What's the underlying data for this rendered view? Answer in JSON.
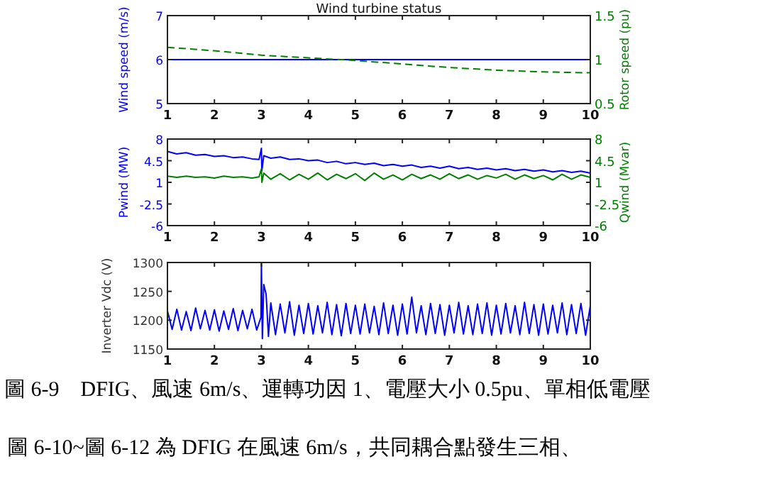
{
  "chart_data": [
    {
      "type": "line",
      "title": "Wind turbine status",
      "ylabel": "Wind speed (m/s)",
      "y2label": "Rotor speed (pu)",
      "xlim": [
        1,
        10
      ],
      "xticks": [
        1,
        2,
        3,
        4,
        5,
        6,
        7,
        8,
        9,
        10
      ],
      "ylim": [
        5,
        7
      ],
      "yticks": [
        5,
        6,
        7
      ],
      "y2lim": [
        0.5,
        1.5
      ],
      "y2ticks": [
        0.5,
        1,
        1.5
      ],
      "series": [
        {
          "color": "#0000ff",
          "x": [
            1,
            10
          ],
          "values": [
            6,
            6
          ]
        },
        {
          "color": "#008000",
          "axis": "y2",
          "line_style": "dashed",
          "x": [
            1,
            2,
            3,
            4,
            5,
            6,
            7,
            8,
            9,
            10
          ],
          "values": [
            1.14,
            1.1,
            1.05,
            1.02,
            0.99,
            0.95,
            0.91,
            0.88,
            0.86,
            0.85
          ]
        }
      ]
    },
    {
      "type": "line",
      "ylabel": "Pwind (MW)",
      "y2label": "Qwind (Mvar)",
      "xlim": [
        1,
        10
      ],
      "xticks": [
        1,
        2,
        3,
        4,
        5,
        6,
        7,
        8,
        9,
        10
      ],
      "ylim": [
        -6,
        8
      ],
      "yticks": [
        -6,
        -2.5,
        1,
        4.5,
        8
      ],
      "y2lim": [
        -6,
        8
      ],
      "y2ticks": [
        -6,
        -2.5,
        1,
        4.5,
        8
      ],
      "series": [
        {
          "color": "#0000ff",
          "x": [
            1,
            1.2,
            1.4,
            1.6,
            1.8,
            2,
            2.2,
            2.4,
            2.6,
            2.8,
            2.95,
            3,
            3.01,
            3.05,
            3.2,
            3.4,
            3.6,
            3.8,
            4,
            4.2,
            4.4,
            4.6,
            4.8,
            5,
            5.2,
            5.4,
            5.6,
            5.8,
            6,
            6.2,
            6.4,
            6.6,
            6.8,
            7,
            7.2,
            7.4,
            7.6,
            7.8,
            8,
            8.2,
            8.4,
            8.6,
            8.8,
            9,
            9.2,
            9.4,
            9.6,
            9.8,
            10
          ],
          "values": [
            6.0,
            5.6,
            5.8,
            5.4,
            5.5,
            5.2,
            5.3,
            5.0,
            5.1,
            4.8,
            4.7,
            6.5,
            2.9,
            5.3,
            4.9,
            5.1,
            4.7,
            4.8,
            4.5,
            4.6,
            4.2,
            4.4,
            4.0,
            4.2,
            3.9,
            4.1,
            3.7,
            3.9,
            3.6,
            3.8,
            3.4,
            3.6,
            3.3,
            3.6,
            3.2,
            3.4,
            3.1,
            3.3,
            3.0,
            3.2,
            2.9,
            3.1,
            2.8,
            3.0,
            2.7,
            2.9,
            2.6,
            2.8,
            2.5
          ]
        },
        {
          "color": "#008000",
          "axis": "y2",
          "x": [
            1,
            1.2,
            1.4,
            1.6,
            1.8,
            2,
            2.2,
            2.4,
            2.6,
            2.8,
            2.95,
            3,
            3.01,
            3.05,
            3.2,
            3.4,
            3.6,
            3.8,
            4,
            4.2,
            4.4,
            4.6,
            4.8,
            5,
            5.2,
            5.4,
            5.6,
            5.8,
            6,
            6.2,
            6.4,
            6.6,
            6.8,
            7,
            7.2,
            7.4,
            7.6,
            7.8,
            8,
            8.2,
            8.4,
            8.6,
            8.8,
            9,
            9.2,
            9.4,
            9.6,
            9.8,
            10
          ],
          "values": [
            2.0,
            1.8,
            2.0,
            1.8,
            1.9,
            1.7,
            2.0,
            1.8,
            1.9,
            1.7,
            1.9,
            3.2,
            1.0,
            2.5,
            1.5,
            2.4,
            1.4,
            2.3,
            1.5,
            2.5,
            1.4,
            2.3,
            1.6,
            2.4,
            1.3,
            2.5,
            1.5,
            2.2,
            1.4,
            2.3,
            1.6,
            2.2,
            1.5,
            2.4,
            1.6,
            2.2,
            1.5,
            2.1,
            1.7,
            2.3,
            1.5,
            2.2,
            1.6,
            2.1,
            1.4,
            2.3,
            1.5,
            2.2,
            1.8
          ]
        }
      ]
    },
    {
      "type": "line",
      "ylabel": "Inverter Vdc (V)",
      "xlim": [
        1,
        10
      ],
      "xticks": [
        1,
        2,
        3,
        4,
        5,
        6,
        7,
        8,
        9,
        10
      ],
      "ylim": [
        1150,
        1300
      ],
      "yticks": [
        1150,
        1200,
        1250,
        1300
      ],
      "annotations": [
        "圖 6-9　DFIG、風速 6m/s、運轉功因 1、電壓大小 0.5pu、單相低電壓",
        "圖 6-10~圖 6-12 為 DFIG 在風速 6m/s，共同耦合點發生三相、"
      ],
      "series": [
        {
          "color": "#0000ff",
          "x": [
            1,
            1.1,
            1.2,
            1.3,
            1.4,
            1.5,
            1.6,
            1.7,
            1.8,
            1.9,
            2,
            2.1,
            2.2,
            2.3,
            2.4,
            2.5,
            2.6,
            2.7,
            2.8,
            2.9,
            2.99,
            3,
            3.02,
            3.05,
            3.1,
            3.15,
            3.2,
            3.3,
            3.4,
            3.5,
            3.6,
            3.7,
            3.8,
            3.9,
            4,
            4.1,
            4.2,
            4.3,
            4.4,
            4.5,
            4.6,
            4.7,
            4.8,
            4.9,
            5,
            5.1,
            5.2,
            5.3,
            5.4,
            5.5,
            5.6,
            5.7,
            5.8,
            5.9,
            6,
            6.1,
            6.2,
            6.3,
            6.4,
            6.5,
            6.6,
            6.7,
            6.8,
            6.9,
            7,
            7.1,
            7.2,
            7.3,
            7.4,
            7.5,
            7.6,
            7.7,
            7.8,
            7.9,
            8,
            8.1,
            8.2,
            8.3,
            8.4,
            8.5,
            8.6,
            8.7,
            8.8,
            8.9,
            9,
            9.1,
            9.2,
            9.3,
            9.4,
            9.5,
            9.6,
            9.7,
            9.8,
            9.9,
            10
          ],
          "values": [
            1216,
            1184,
            1219,
            1183,
            1215,
            1182,
            1221,
            1185,
            1217,
            1183,
            1218,
            1181,
            1216,
            1184,
            1220,
            1182,
            1217,
            1185,
            1219,
            1183,
            1205,
            1300,
            1168,
            1262,
            1245,
            1172,
            1230,
            1175,
            1228,
            1178,
            1232,
            1174,
            1226,
            1177,
            1229,
            1176,
            1225,
            1178,
            1231,
            1175,
            1227,
            1173,
            1229,
            1177,
            1226,
            1176,
            1228,
            1178,
            1224,
            1175,
            1230,
            1177,
            1226,
            1174,
            1228,
            1176,
            1240,
            1178,
            1225,
            1175,
            1229,
            1177,
            1227,
            1174,
            1226,
            1178,
            1231,
            1176,
            1225,
            1175,
            1228,
            1177,
            1230,
            1174,
            1226,
            1176,
            1229,
            1178,
            1225,
            1175,
            1231,
            1177,
            1227,
            1174,
            1228,
            1176,
            1226,
            1178,
            1230,
            1175,
            1227,
            1177,
            1229,
            1174,
            1225
          ]
        }
      ]
    }
  ]
}
